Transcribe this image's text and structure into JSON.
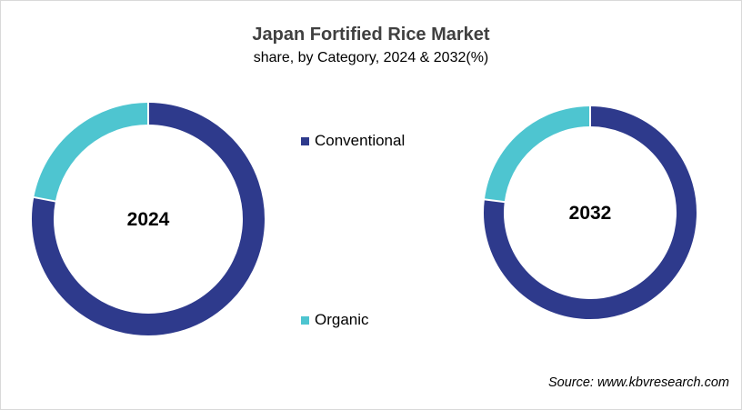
{
  "chart_data": {
    "type": "pie",
    "variant": "donut",
    "title": "Japan Fortified Rice Market",
    "subtitle": "share, by Category, 2024 & 2032(%)",
    "categories": [
      "Conventional",
      "Organic"
    ],
    "colors": {
      "Conventional": "#2e3a8c",
      "Organic": "#4ec5d0"
    },
    "legend_placement": "center",
    "charts": [
      {
        "label": "2024",
        "values": [
          78,
          22
        ]
      },
      {
        "label": "2032",
        "values": [
          77,
          23
        ]
      }
    ]
  },
  "legend": {
    "items": [
      {
        "label": "Conventional"
      },
      {
        "label": "Organic"
      }
    ]
  },
  "source": "Source: www.kbvresearch.com"
}
